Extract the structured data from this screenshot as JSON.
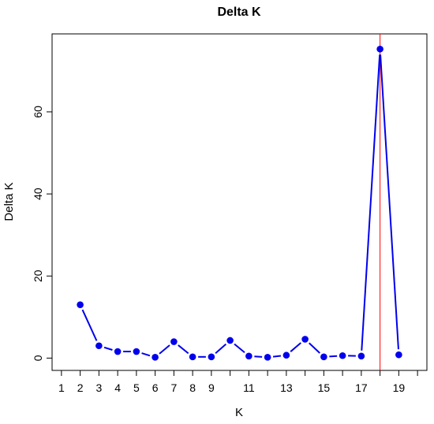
{
  "chart_data": {
    "type": "line",
    "title": "Delta K",
    "xlabel": "K",
    "ylabel": "Delta K",
    "x": [
      2,
      3,
      4,
      5,
      6,
      7,
      8,
      9,
      10,
      11,
      12,
      13,
      14,
      15,
      16,
      17,
      18,
      19
    ],
    "series": [
      {
        "values": [
          13.0,
          3.0,
          1.6,
          1.6,
          0.2,
          4.0,
          0.3,
          0.3,
          4.3,
          0.5,
          0.2,
          0.7,
          4.6,
          0.3,
          0.6,
          0.5,
          75.3,
          0.8
        ],
        "color": "#0000ee"
      }
    ],
    "xlim": [
      0.5,
      20.5
    ],
    "ylim": [
      -3,
      79
    ],
    "x_ticks": [
      1,
      2,
      3,
      4,
      5,
      6,
      7,
      8,
      9,
      10,
      11,
      12,
      13,
      14,
      15,
      16,
      17,
      18,
      19,
      20
    ],
    "x_tick_labels": [
      "1",
      "2",
      "3",
      "4",
      "5",
      "6",
      "7",
      "8",
      "9",
      "",
      "11",
      "",
      "13",
      "",
      "15",
      "",
      "17",
      "",
      "19",
      ""
    ],
    "y_ticks": [
      0,
      20,
      40,
      60
    ],
    "y_tick_labels": [
      "0",
      "20",
      "40",
      "60"
    ],
    "vline": {
      "x": 18,
      "color": "#ff0000"
    },
    "grid": false
  }
}
